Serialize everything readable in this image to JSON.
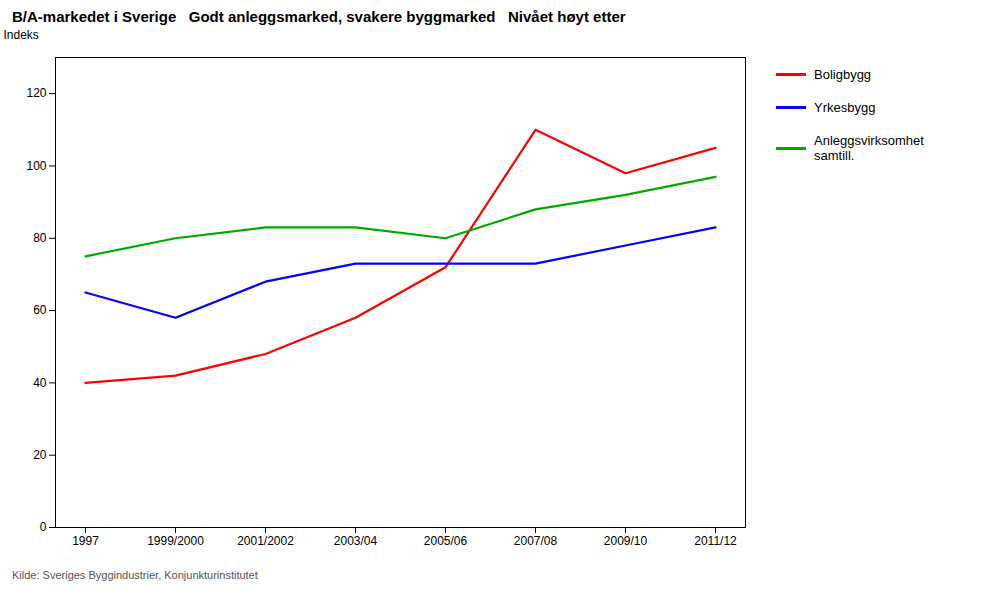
{
  "chart_data": {
    "type": "line",
    "title": "B/A-markedet i Sverige   Godt anleggsmarked, svakere byggmarked   Nivået høyt etter",
    "subtitle": "Kilde: Sveriges Byggindustrier, Konjunkturinstitutet",
    "ylabel": "Indeks",
    "categories": [
      "1997",
      "1999/2000",
      "2001/2002",
      "2003/04",
      "2005/06",
      "2007/08",
      "2009/10",
      "2011/12"
    ],
    "series": [
      {
        "name": "Boligbygg",
        "color": "#ff0000",
        "values": [
          40,
          42,
          48,
          58,
          72,
          110,
          98,
          105
        ]
      },
      {
        "name": "Yrkesbygg",
        "color": "#0000ff",
        "values": [
          65,
          58,
          68,
          73,
          73,
          73,
          78,
          83
        ]
      },
      {
        "name": "Anleggsvirksomhet\nsamtill.",
        "color": "#00aa00",
        "values": [
          75,
          80,
          83,
          83,
          80,
          88,
          92,
          97
        ]
      }
    ],
    "ylim": [
      0,
      130
    ],
    "yticks": [
      0,
      20,
      40,
      60,
      80,
      100,
      120
    ],
    "grid": false,
    "legend": "right"
  }
}
